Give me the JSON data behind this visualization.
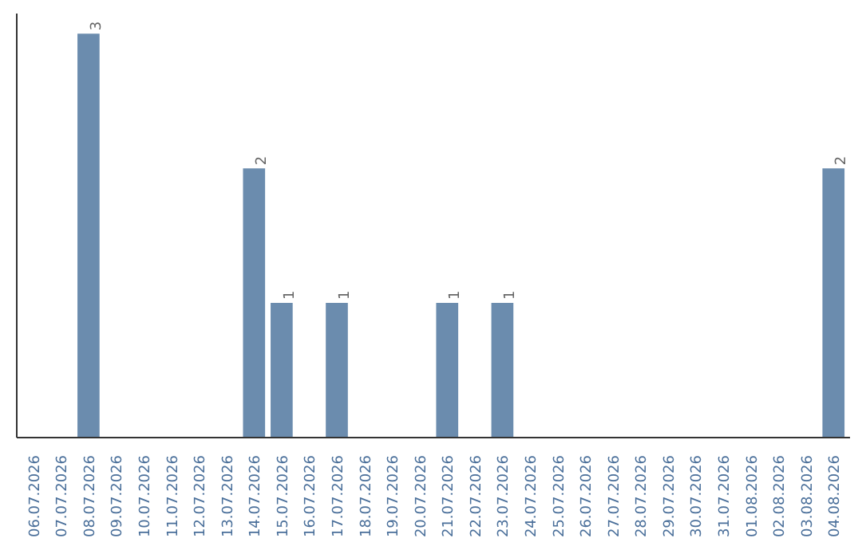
{
  "chart_data": {
    "type": "bar",
    "categories": [
      "06.07.2026",
      "07.07.2026",
      "08.07.2026",
      "09.07.2026",
      "10.07.2026",
      "11.07.2026",
      "12.07.2026",
      "13.07.2026",
      "14.07.2026",
      "15.07.2026",
      "16.07.2026",
      "17.07.2026",
      "18.07.2026",
      "19.07.2026",
      "20.07.2026",
      "21.07.2026",
      "22.07.2026",
      "23.07.2026",
      "24.07.2026",
      "25.07.2026",
      "26.07.2026",
      "27.07.2026",
      "28.07.2026",
      "29.07.2026",
      "30.07.2026",
      "31.07.2026",
      "01.08.2026",
      "02.08.2026",
      "03.08.2026",
      "04.08.2026"
    ],
    "values": [
      0,
      0,
      3,
      0,
      0,
      0,
      0,
      0,
      2,
      1,
      0,
      1,
      0,
      0,
      0,
      1,
      0,
      1,
      0,
      0,
      0,
      0,
      0,
      0,
      0,
      0,
      0,
      0,
      0,
      2
    ],
    "value_labels": [
      null,
      null,
      "3",
      null,
      null,
      null,
      null,
      null,
      "2",
      "1",
      null,
      "1",
      null,
      null,
      null,
      "1",
      null,
      "1",
      null,
      null,
      null,
      null,
      null,
      null,
      null,
      null,
      null,
      null,
      null,
      "2"
    ],
    "color": "#6b8cae",
    "grid": false,
    "tick_labels": "x"
  }
}
